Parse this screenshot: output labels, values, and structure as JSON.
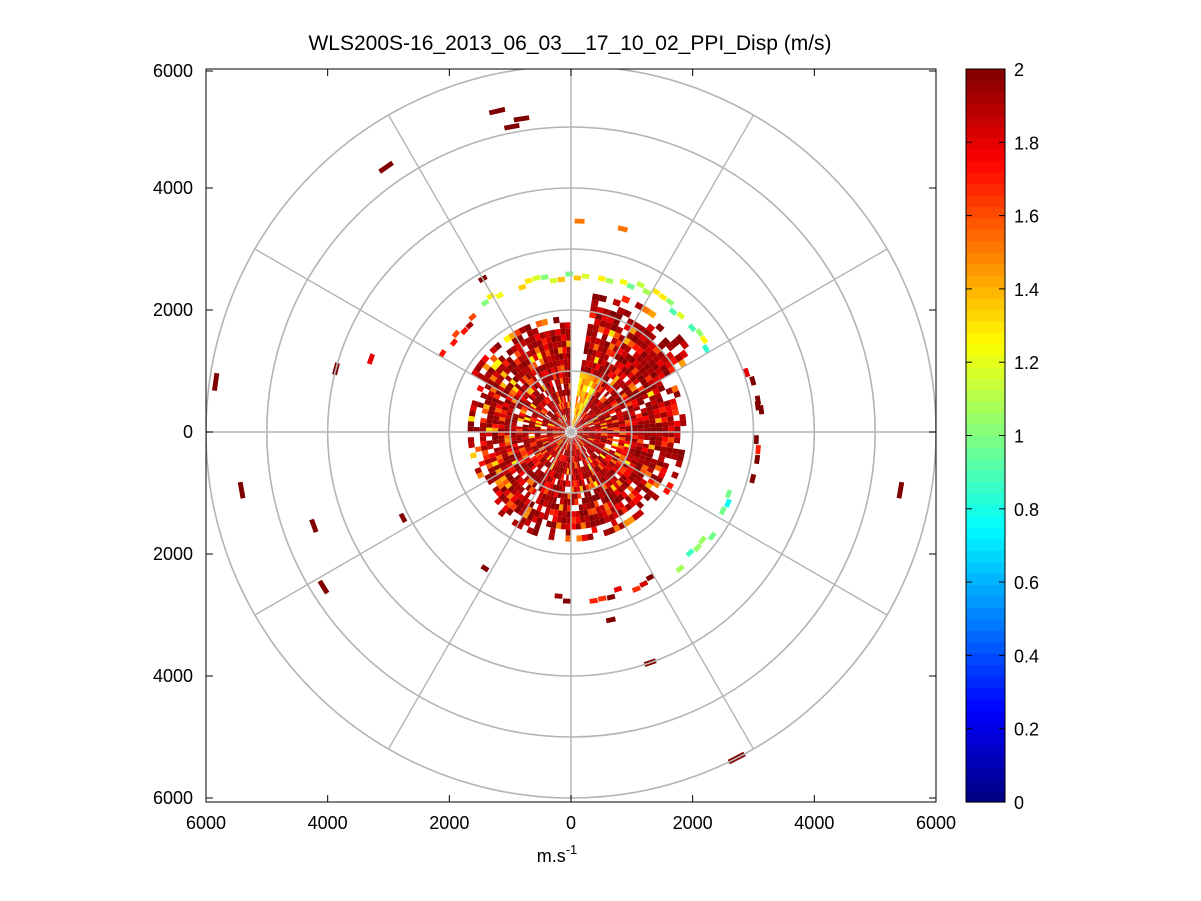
{
  "chart_data": {
    "type": "heatmap",
    "subtype": "polar-ppi",
    "title": "WLS200S-16_2013_06_03__17_10_02_PPI_Disp (m/s)",
    "xlabel": "m.s",
    "xlabel_superscript": "-1",
    "ylabel": "",
    "xlim": [
      -6000,
      6000
    ],
    "ylim": [
      -6000,
      6000
    ],
    "x_ticks": [
      {
        "value": -6000,
        "label": "6000"
      },
      {
        "value": -4000,
        "label": "4000"
      },
      {
        "value": -2000,
        "label": "2000"
      },
      {
        "value": 0,
        "label": "0"
      },
      {
        "value": 2000,
        "label": "2000"
      },
      {
        "value": 4000,
        "label": "4000"
      },
      {
        "value": 6000,
        "label": "6000"
      }
    ],
    "y_ticks": [
      {
        "value": 6000,
        "label": "6000"
      },
      {
        "value": 4000,
        "label": "4000"
      },
      {
        "value": 2000,
        "label": "2000"
      },
      {
        "value": 0,
        "label": "0"
      },
      {
        "value": -2000,
        "label": "2000"
      },
      {
        "value": -4000,
        "label": "4000"
      },
      {
        "value": -6000,
        "label": "6000"
      }
    ],
    "polar_grid": {
      "ring_radii": [
        1000,
        2000,
        3000,
        4000,
        5000,
        6000
      ],
      "spoke_angles_deg": [
        0,
        30,
        60,
        90,
        120,
        150,
        180,
        210,
        240,
        270,
        300,
        330
      ]
    },
    "colorbar": {
      "range": [
        0,
        2
      ],
      "ticks": [
        {
          "value": 0,
          "label": "0"
        },
        {
          "value": 0.2,
          "label": "0.2"
        },
        {
          "value": 0.4,
          "label": "0.4"
        },
        {
          "value": 0.6,
          "label": "0.6"
        },
        {
          "value": 0.8,
          "label": "0.8"
        },
        {
          "value": 1.0,
          "label": "1"
        },
        {
          "value": 1.2,
          "label": "1.2"
        },
        {
          "value": 1.4,
          "label": "1.4"
        },
        {
          "value": 1.6,
          "label": "1.6"
        },
        {
          "value": 1.8,
          "label": "1.8"
        },
        {
          "value": 2.0,
          "label": "2"
        }
      ],
      "colormap": "jet",
      "levels": 64
    },
    "scan": {
      "sector_gap_deg": [
        80,
        90
      ],
      "dense_max_range_m": 1900,
      "gate_m": 100
    },
    "arc_features": [
      {
        "range_m": 2500,
        "from_deg": 125,
        "to_deg": 75,
        "value": 1.15
      },
      {
        "range_m": 2600,
        "from_deg": 72,
        "to_deg": 30,
        "value": 1.05
      },
      {
        "range_m": 2400,
        "from_deg": 150,
        "to_deg": 128,
        "value": 1.8
      },
      {
        "range_m": 3050,
        "from_deg": 20,
        "to_deg": -15,
        "value": 1.9
      },
      {
        "range_m": 2800,
        "from_deg": -20,
        "to_deg": -55,
        "value": 1.0
      },
      {
        "range_m": 2700,
        "from_deg": -60,
        "to_deg": -95,
        "value": 1.9
      },
      {
        "range_m": 2650,
        "from_deg": -100,
        "to_deg": -122,
        "value": 1.95
      },
      {
        "range_m": 3450,
        "from_deg": 89,
        "to_deg": 75,
        "value": 1.3
      }
    ],
    "far_echoes": [
      {
        "range_m": 5400,
        "angle_deg": 103,
        "value": 2.0
      },
      {
        "range_m": 5200,
        "angle_deg": 99,
        "value": 2.0
      },
      {
        "range_m": 5100,
        "angle_deg": 101,
        "value": 2.0
      },
      {
        "range_m": 5300,
        "angle_deg": 125,
        "value": 2.0
      },
      {
        "range_m": 5900,
        "angle_deg": 172,
        "value": 2.0
      },
      {
        "range_m": 5500,
        "angle_deg": 190,
        "value": 2.0
      },
      {
        "range_m": 4500,
        "angle_deg": 200,
        "value": 2.0
      },
      {
        "range_m": 4800,
        "angle_deg": 212,
        "value": 2.0
      },
      {
        "range_m": 4000,
        "angle_deg": 165,
        "value": 2.0
      },
      {
        "range_m": 3500,
        "angle_deg": 160,
        "value": 1.8
      },
      {
        "range_m": 3100,
        "angle_deg": 207,
        "value": 2.0
      },
      {
        "range_m": 5500,
        "angle_deg": -10,
        "value": 2.0
      },
      {
        "range_m": 6000,
        "angle_deg": -63,
        "value": 2.0
      },
      {
        "range_m": 4000,
        "angle_deg": -71,
        "value": 2.0
      },
      {
        "range_m": 3150,
        "angle_deg": -78,
        "value": 2.0
      },
      {
        "range_m": 3100,
        "angle_deg": 8,
        "value": 2.0
      },
      {
        "range_m": 2900,
        "angle_deg": 120,
        "value": 2.0
      }
    ]
  }
}
